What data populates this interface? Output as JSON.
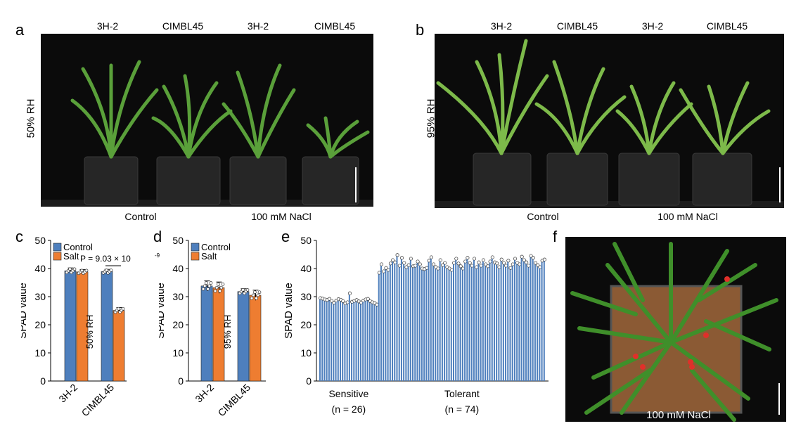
{
  "panels": {
    "a": {
      "label": "a",
      "genotypes": [
        "3H-2",
        "CIMBL45",
        "3H-2",
        "CIMBL45"
      ],
      "rh_label": "50% RH",
      "conditions": [
        "Control",
        "100 mM NaCl"
      ]
    },
    "b": {
      "label": "b",
      "genotypes": [
        "3H-2",
        "CIMBL45",
        "3H-2",
        "CIMBL45"
      ],
      "rh_label": "95% RH",
      "conditions": [
        "Control",
        "100 mM NaCl"
      ]
    },
    "f": {
      "label": "f",
      "caption": "100 mM NaCl"
    }
  },
  "chart_data": [
    {
      "id": "c",
      "label": "c",
      "type": "bar",
      "categories": [
        "3H-2",
        "CIMBL45"
      ],
      "series": [
        {
          "name": "Control",
          "values": [
            39.2,
            38.9
          ],
          "error": [
            1.0,
            0.8
          ]
        },
        {
          "name": "Salt",
          "values": [
            38.8,
            25.1
          ],
          "error": [
            0.8,
            1.0
          ]
        }
      ],
      "ylabel": "SPAD value",
      "ylim": [
        0,
        50
      ],
      "yticks": [
        0,
        10,
        20,
        30,
        40,
        50
      ],
      "annotation": "P = 9.03 × 10",
      "annotation_exp": "-9",
      "inset_label": "50% RH",
      "colors": {
        "Control": "#4e7fbd",
        "Salt": "#ee7d31"
      }
    },
    {
      "id": "d",
      "label": "d",
      "type": "bar",
      "categories": [
        "3H-2",
        "CIMBL45"
      ],
      "series": [
        {
          "name": "Control",
          "values": [
            33.8,
            31.8
          ],
          "error": [
            1.8,
            1.0
          ]
        },
        {
          "name": "Salt",
          "values": [
            33.2,
            30.5
          ],
          "error": [
            2.0,
            1.8
          ]
        }
      ],
      "ylabel": "SPAD value",
      "ylim": [
        0,
        50
      ],
      "yticks": [
        0,
        10,
        20,
        30,
        40,
        50
      ],
      "inset_label": "95% RH",
      "colors": {
        "Control": "#4e7fbd",
        "Salt": "#ee7d31"
      }
    },
    {
      "id": "e",
      "label": "e",
      "type": "bar",
      "ylabel": "SPAD value",
      "ylim": [
        0,
        50
      ],
      "yticks": [
        0,
        10,
        20,
        30,
        40,
        50
      ],
      "groups": [
        {
          "name": "Sensitive",
          "n_label": "(n = 26)",
          "values": [
            29.5,
            29.3,
            29.0,
            28.8,
            29.2,
            28.5,
            27.8,
            28.6,
            29.1,
            28.9,
            28.4,
            27.6,
            28.0,
            31.2,
            28.2,
            28.5,
            28.8,
            28.3,
            27.9,
            28.6,
            29.0,
            29.2,
            28.4,
            28.0,
            27.7,
            27.2
          ]
        },
        {
          "name": "Tolerant",
          "n_label": "(n = 74)",
          "values": [
            38.5,
            41.5,
            39.0,
            40.2,
            39.5,
            41.8,
            43.0,
            42.2,
            44.8,
            41.0,
            43.8,
            42.0,
            40.5,
            41.2,
            43.5,
            40.8,
            41.0,
            42.5,
            41.5,
            40.0,
            39.8,
            40.2,
            42.8,
            44.0,
            41.5,
            40.5,
            40.0,
            43.0,
            41.2,
            42.0,
            40.5,
            40.0,
            39.5,
            42.0,
            43.5,
            41.8,
            40.8,
            40.0,
            42.5,
            43.8,
            42.0,
            41.0,
            43.5,
            40.5,
            42.2,
            41.0,
            43.0,
            41.5,
            40.8,
            42.5,
            44.0,
            42.2,
            41.8,
            40.5,
            43.2,
            42.0,
            41.0,
            42.8,
            40.2,
            41.5,
            43.5,
            42.0,
            41.5,
            44.2,
            43.0,
            42.2,
            41.0,
            44.5,
            43.8,
            42.0,
            41.2,
            40.5,
            42.8,
            43.2
          ]
        }
      ],
      "color": "#4e7fbd"
    }
  ]
}
